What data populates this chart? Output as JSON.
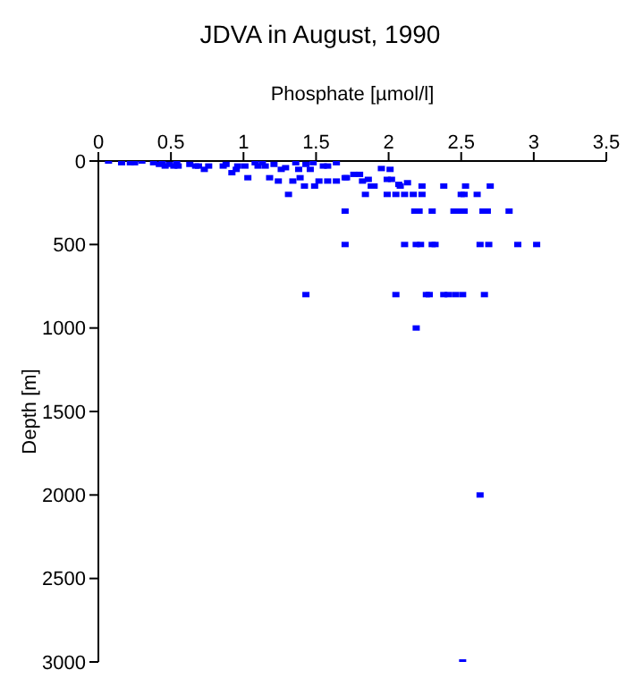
{
  "chart_data": {
    "type": "scatter",
    "title": "JDVA in August, 1990",
    "xlabel": "Phosphate [µmol/l]",
    "ylabel": "Depth [m]",
    "xlim": [
      0,
      3.5
    ],
    "xticks": [
      0,
      0.5,
      1,
      1.5,
      2,
      2.5,
      3,
      3.5
    ],
    "ylim": [
      3000,
      0
    ],
    "yticks": [
      0,
      500,
      1000,
      1500,
      2000,
      2500,
      3000
    ],
    "marker": "square",
    "grid": false,
    "legend": false,
    "series": [
      {
        "color": "#0000ff",
        "x": [
          0.07,
          0.16,
          0.22,
          0.25,
          0.3,
          0.38,
          0.42,
          0.44,
          0.46,
          0.49,
          0.52,
          0.54,
          0.55,
          0.63,
          0.67,
          0.69,
          0.73,
          0.76,
          0.86,
          0.88,
          0.92,
          0.95,
          0.96,
          1.01,
          1.03,
          1.08,
          1.1,
          1.13,
          1.15,
          1.18,
          1.21,
          1.24,
          1.26,
          1.29,
          1.31,
          1.34,
          1.36,
          1.38,
          1.39,
          1.42,
          1.43,
          1.46,
          1.48,
          1.49,
          1.52,
          1.55,
          1.58,
          1.58,
          1.64,
          1.64,
          1.7,
          1.71,
          1.76,
          1.8,
          1.82,
          1.84,
          1.86,
          1.88,
          1.9,
          1.95,
          1.99,
          1.99,
          2.01,
          2.02,
          2.05,
          2.07,
          2.08,
          2.11,
          2.13,
          2.17,
          2.23,
          2.23,
          2.38,
          2.5,
          2.52,
          2.53,
          2.61,
          2.7,
          1.7,
          2.18,
          2.21,
          2.3,
          2.45,
          2.48,
          2.52,
          2.65,
          2.68,
          2.83,
          1.7,
          2.11,
          2.19,
          2.22,
          2.3,
          2.32,
          2.63,
          2.69,
          2.89,
          3.02,
          1.43,
          2.05,
          2.26,
          2.28,
          2.38,
          2.41,
          2.46,
          2.51,
          2.66,
          2.19,
          2.63,
          2.51
        ],
        "values": [
          0,
          10,
          10,
          10,
          0,
          10,
          20,
          10,
          30,
          20,
          30,
          10,
          30,
          20,
          30,
          30,
          50,
          30,
          30,
          20,
          70,
          50,
          30,
          30,
          100,
          10,
          30,
          10,
          30,
          100,
          20,
          120,
          50,
          40,
          200,
          120,
          10,
          50,
          100,
          150,
          20,
          50,
          10,
          150,
          120,
          30,
          30,
          120,
          10,
          120,
          100,
          100,
          80,
          80,
          120,
          200,
          110,
          150,
          150,
          45,
          200,
          110,
          50,
          110,
          200,
          140,
          150,
          200,
          130,
          200,
          200,
          150,
          150,
          200,
          200,
          150,
          200,
          150,
          300,
          300,
          300,
          300,
          300,
          300,
          300,
          300,
          300,
          300,
          500,
          500,
          500,
          500,
          500,
          500,
          500,
          500,
          500,
          500,
          800,
          800,
          800,
          800,
          800,
          800,
          800,
          800,
          800,
          1000,
          2000,
          3000
        ]
      }
    ]
  }
}
